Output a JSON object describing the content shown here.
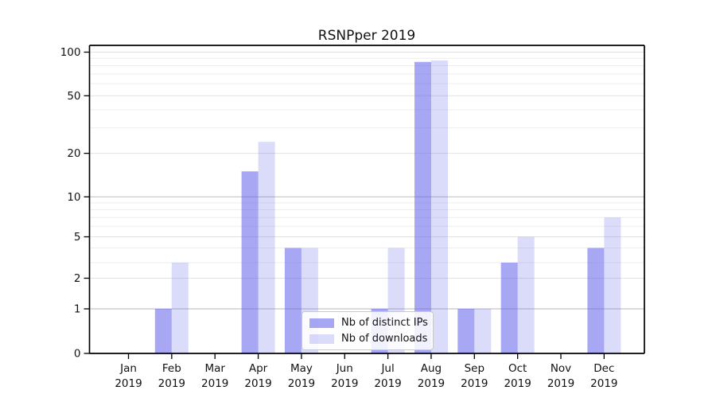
{
  "title": "RSNPper 2019",
  "chart_data": {
    "type": "bar",
    "months": [
      "Jan",
      "Feb",
      "Mar",
      "Apr",
      "May",
      "Jun",
      "Jul",
      "Aug",
      "Sep",
      "Oct",
      "Nov",
      "Dec"
    ],
    "year": "2019",
    "series": [
      {
        "name": "Nb of distinct IPs",
        "color": "rgba(95,95,235,0.55)",
        "values": [
          0,
          1,
          0,
          15,
          4,
          0,
          1,
          85,
          1,
          3,
          0,
          4
        ]
      },
      {
        "name": "Nb of downloads",
        "color": "rgba(100,100,235,0.23)",
        "values": [
          0,
          3,
          0,
          24,
          4,
          0,
          4,
          87,
          1,
          5,
          0,
          7
        ]
      }
    ],
    "yticks": [
      0,
      1,
      2,
      5,
      10,
      20,
      50,
      100
    ],
    "ylim": [
      0,
      100
    ],
    "yscale": "symlog",
    "grid": true,
    "legend_position": "lower center",
    "colors": {
      "bar_dark_hex": "#a9a9f1",
      "bar_light_hex": "#dcdcf8",
      "grid_hex": "#e2e2e2",
      "axis_hex": "#000000"
    }
  }
}
